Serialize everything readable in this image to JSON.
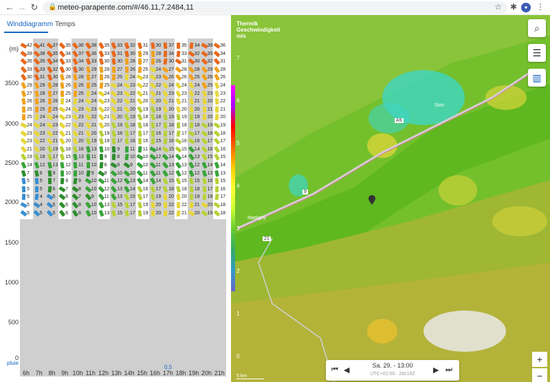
{
  "browser": {
    "url": "meteo-parapente.com/#/46.11,7.2484,11",
    "back_icon": "arrow-left",
    "forward_icon": "arrow-right",
    "reload_icon": "reload"
  },
  "tabs": [
    {
      "label": "Winddiagramm",
      "active": true
    },
    {
      "label": "Temps",
      "active": false
    }
  ],
  "wind_diagram": {
    "y_unit": "(m)",
    "y_labels": [
      "3500",
      "3000",
      "2500",
      "2000",
      "1500",
      "1000",
      "500",
      "0"
    ],
    "x_labels": [
      "6h",
      "7h",
      "8h",
      "9h",
      "10h",
      "11h",
      "12h",
      "13h",
      "14h",
      "15h",
      "16h",
      "17h",
      "18h",
      "19h",
      "20h",
      "21h"
    ],
    "rain_label": "pluie",
    "rain_value_17h": "0.5",
    "rows": [
      [
        "42",
        "41",
        "37",
        "35",
        "36",
        "38",
        "35",
        "33",
        "32",
        "31",
        "30",
        "37",
        "35",
        "34",
        "38",
        "36"
      ],
      [
        "39",
        "38",
        "35",
        "34",
        "37",
        "36",
        "33",
        "31",
        "30",
        "29",
        "28",
        "34",
        "33",
        "32",
        "35",
        "34"
      ],
      [
        "35",
        "35",
        "34",
        "33",
        "34",
        "33",
        "30",
        "30",
        "28",
        "27",
        "26",
        "30",
        "31",
        "30",
        "32",
        "31"
      ],
      [
        "33",
        "33",
        "32",
        "30",
        "30",
        "29",
        "28",
        "27",
        "26",
        "25",
        "24",
        "27",
        "28",
        "28",
        "29",
        "28"
      ],
      [
        "30",
        "31",
        "30",
        "28",
        "28",
        "27",
        "26",
        "25",
        "24",
        "23",
        "23",
        "26",
        "26",
        "25",
        "26",
        "26"
      ],
      [
        "29",
        "29",
        "28",
        "26",
        "26",
        "25",
        "25",
        "24",
        "23",
        "22",
        "22",
        "24",
        "24",
        "24",
        "25",
        "24"
      ],
      [
        "27",
        "28",
        "27",
        "25",
        "25",
        "24",
        "24",
        "23",
        "22",
        "21",
        "21",
        "23",
        "23",
        "22",
        "23",
        "23"
      ],
      [
        "26",
        "26",
        "26",
        "24",
        "24",
        "24",
        "23",
        "22",
        "21",
        "20",
        "20",
        "21",
        "21",
        "21",
        "20",
        "22"
      ],
      [
        "25",
        "25",
        "25",
        "24",
        "23",
        "23",
        "22",
        "21",
        "20",
        "19",
        "19",
        "20",
        "20",
        "20",
        "21",
        "21"
      ],
      [
        "25",
        "24",
        "24",
        "23",
        "23",
        "22",
        "21",
        "20",
        "19",
        "18",
        "18",
        "19",
        "19",
        "19",
        "20",
        "20"
      ],
      [
        "24",
        "24",
        "23",
        "22",
        "22",
        "21",
        "20",
        "19",
        "18",
        "18",
        "17",
        "18",
        "18",
        "18",
        "19",
        "19"
      ],
      [
        "23",
        "23",
        "22",
        "21",
        "21",
        "20",
        "19",
        "18",
        "17",
        "17",
        "16",
        "17",
        "17",
        "17",
        "18",
        "18"
      ],
      [
        "23",
        "22",
        "21",
        "20",
        "20",
        "19",
        "18",
        "17",
        "16",
        "16",
        "15",
        "16",
        "16",
        "16",
        "17",
        "17"
      ],
      [
        "21",
        "20",
        "19",
        "18",
        "16",
        "13",
        "10",
        "9",
        "11",
        "11",
        "14",
        "15",
        "15",
        "14",
        "16",
        "16"
      ],
      [
        "19",
        "18",
        "17",
        "15",
        "13",
        "11",
        "9",
        "8",
        "10",
        "10",
        "12",
        "14",
        "14",
        "13",
        "15",
        "15"
      ],
      [
        "14",
        "12",
        "13",
        "12",
        "11",
        "10",
        "8",
        "9",
        "9",
        "10",
        "11",
        "13",
        "13",
        "12",
        "14",
        "14"
      ],
      [
        "7",
        "6",
        "9",
        "10",
        "10",
        "9",
        "9",
        "10",
        "10",
        "11",
        "11",
        "12",
        "12",
        "12",
        "13",
        "13"
      ],
      [
        "5",
        "5",
        "7",
        "8",
        "9",
        "10",
        "11",
        "12",
        "13",
        "14",
        "14",
        "15",
        "15",
        "15",
        "16",
        "15"
      ],
      [
        "5",
        "5",
        "6",
        "7",
        "8",
        "10",
        "12",
        "13",
        "14",
        "16",
        "17",
        "18",
        "18",
        "18",
        "17",
        "16"
      ],
      [
        "5",
        "4",
        "5",
        "6",
        "7",
        "9",
        "11",
        "13",
        "15",
        "17",
        "19",
        "20",
        "20",
        "19",
        "18",
        "17"
      ],
      [
        "5",
        "4",
        "5",
        "6",
        "8",
        "10",
        "13",
        "15",
        "17",
        "19",
        "20",
        "22",
        "22",
        "21",
        "20",
        "18"
      ],
      [
        "5",
        "5",
        "5",
        "6",
        "8",
        "10",
        "13",
        "15",
        "17",
        "19",
        "20",
        "22",
        "21",
        "20",
        "19",
        "18"
      ]
    ]
  },
  "map": {
    "title_line1": "Thermik",
    "title_line2": "Geschwindigkeit",
    "title_line3": "m/s",
    "scale_labels": [
      "7",
      "6",
      "5",
      "4",
      "3",
      "2",
      "1",
      "0"
    ],
    "places": [
      "Sion",
      "Martigny",
      "A9",
      "9",
      "21"
    ],
    "time_label": "Sa. 29. - 13:00",
    "time_sub": "UTC+02:00 · 28z18Z",
    "scale_label": "5 km",
    "zoom_in": "+",
    "zoom_out": "−",
    "colors": {
      "green": "#6fbf2a",
      "yellow": "#d7d43a",
      "cyan": "#3fd6c4"
    }
  }
}
